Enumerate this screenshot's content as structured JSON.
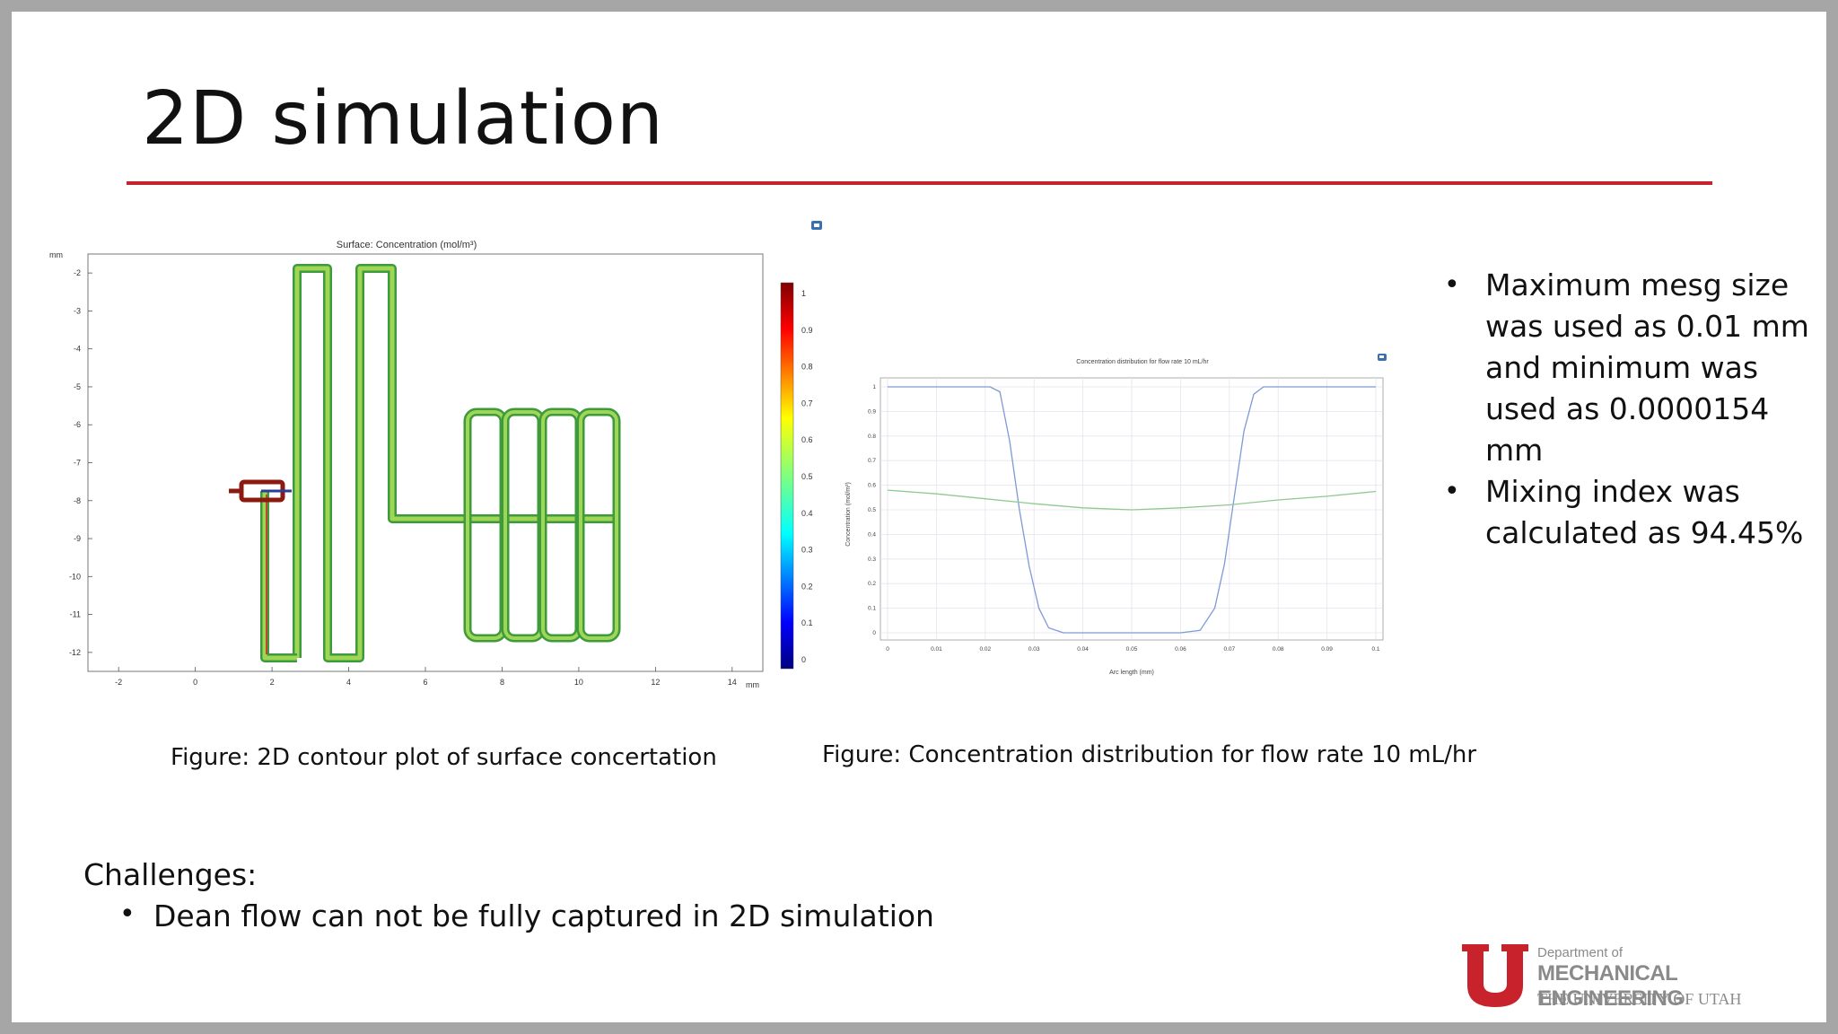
{
  "slide": {
    "title": "2D simulation",
    "accent_color": "#c8232c"
  },
  "contour_plot": {
    "title": "Surface: Concentration (mol/m³)",
    "x_unit": "mm",
    "y_unit": "mm",
    "x_ticks": [
      "-2",
      "0",
      "2",
      "4",
      "6",
      "8",
      "10",
      "12",
      "14"
    ],
    "y_ticks": [
      "-2",
      "-3",
      "-4",
      "-5",
      "-6",
      "-7",
      "-8",
      "-9",
      "-10",
      "-11",
      "-12"
    ],
    "colorbar_ticks": [
      "1",
      "0.9",
      "0.8",
      "0.7",
      "0.6",
      "0.5",
      "0.4",
      "0.3",
      "0.2",
      "0.1",
      "0"
    ],
    "caption": "Figure: 2D contour plot of  surface concertation"
  },
  "chart_data": {
    "type": "line",
    "title": "Concentration distribution for flow rate 10 mL/hr",
    "xlabel": "Arc length (mm)",
    "ylabel": "Concentration (mol/m³)",
    "xlim": [
      0,
      0.1
    ],
    "ylim": [
      0,
      1
    ],
    "x_ticks": [
      "0",
      "0.01",
      "0.02",
      "0.03",
      "0.04",
      "0.05",
      "0.06",
      "0.07",
      "0.08",
      "0.09",
      "0.1"
    ],
    "y_ticks": [
      "0",
      "0.1",
      "0.2",
      "0.3",
      "0.4",
      "0.5",
      "0.6",
      "0.7",
      "0.8",
      "0.9",
      "1"
    ],
    "grid": true,
    "series": [
      {
        "color": "#7e9ad6",
        "x": [
          0,
          0.019,
          0.021,
          0.023,
          0.025,
          0.027,
          0.029,
          0.031,
          0.033,
          0.036,
          0.04,
          0.05,
          0.06,
          0.064,
          0.067,
          0.069,
          0.071,
          0.073,
          0.075,
          0.077,
          0.079,
          0.08,
          0.1
        ],
        "y": [
          1.0,
          1.0,
          1.0,
          0.98,
          0.78,
          0.5,
          0.27,
          0.1,
          0.02,
          0.0,
          0.0,
          0.0,
          0.0,
          0.01,
          0.1,
          0.28,
          0.55,
          0.82,
          0.97,
          1.0,
          1.0,
          1.0,
          1.0
        ]
      },
      {
        "color": "#8fc98f",
        "x": [
          0,
          0.01,
          0.02,
          0.03,
          0.04,
          0.05,
          0.06,
          0.07,
          0.08,
          0.09,
          0.1
        ],
        "y": [
          0.58,
          0.565,
          0.545,
          0.525,
          0.508,
          0.5,
          0.508,
          0.52,
          0.54,
          0.555,
          0.575
        ]
      }
    ],
    "caption": "Figure: Concentration distribution for flow rate 10 mL/hr"
  },
  "bullets": [
    "Maximum mesg size was used as 0.01 mm and minimum was used as 0.0000154 mm",
    "Mixing index was calculated as 94.45%"
  ],
  "challenges": {
    "heading": "Challenges:",
    "items": [
      "Dean flow can not be fully captured in 2D simulation"
    ]
  },
  "logo": {
    "line1": "Department of",
    "line2": "MECHANICAL ENGINEERING",
    "line3": "THE UNIVERSITY OF UTAH",
    "color": "#c8232c"
  }
}
